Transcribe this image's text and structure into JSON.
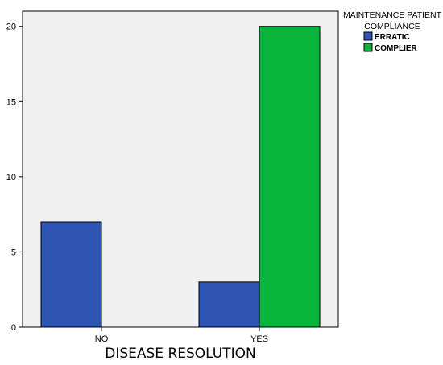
{
  "chart_data": {
    "type": "bar",
    "categories": [
      "NO",
      "YES"
    ],
    "series": [
      {
        "name": "ERRATIC",
        "values": [
          7,
          3
        ],
        "color": "#2e55b2"
      },
      {
        "name": "COMPLIER",
        "values": [
          0,
          20
        ],
        "color": "#0ab53d"
      }
    ],
    "title": "",
    "xlabel": "DISEASE RESOLUTION",
    "ylabel": "",
    "ylim": [
      0,
      21
    ],
    "yticks": [
      0,
      5,
      10,
      15,
      20
    ],
    "legend_title": "MAINTENANCE PATIENT\nCOMPLIANCE",
    "legend_position": "top-right",
    "grid": false,
    "plot_background": "#f0f0f0"
  }
}
